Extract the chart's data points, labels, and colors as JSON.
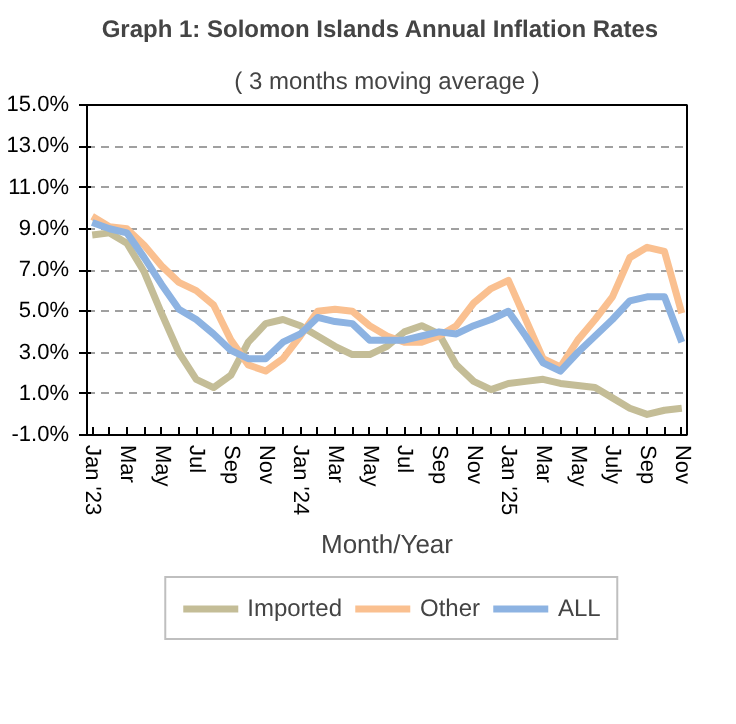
{
  "chart_data": {
    "type": "line",
    "title": "Graph 1:   Solomon Islands Annual Inflation Rates",
    "subtitle": "( 3 months moving average )",
    "xlabel": "Month/Year",
    "categories": [
      "Jan '23",
      null,
      "Mar",
      null,
      "May",
      null,
      "Jul",
      null,
      "Sep",
      null,
      "Nov",
      null,
      "Jan '24",
      null,
      "Mar",
      null,
      "May",
      null,
      "Jul",
      null,
      "Sep",
      null,
      "Nov",
      null,
      "Jan '25",
      null,
      "Mar",
      null,
      "May",
      null,
      "July",
      null,
      "Sep",
      null,
      "Nov"
    ],
    "series": [
      {
        "name": "Imported",
        "color": "#c4bd97",
        "values": [
          8.7,
          8.8,
          8.3,
          6.9,
          4.9,
          3.0,
          1.7,
          1.3,
          1.9,
          3.5,
          4.4,
          4.6,
          4.3,
          3.8,
          3.3,
          2.9,
          2.9,
          3.3,
          4.0,
          4.3,
          3.9,
          2.4,
          1.6,
          1.2,
          1.5,
          1.6,
          1.7,
          1.5,
          1.4,
          1.3,
          0.8,
          0.3,
          0.0,
          0.2,
          0.3
        ]
      },
      {
        "name": "Other",
        "color": "#fac090",
        "values": [
          9.6,
          9.1,
          9.0,
          8.2,
          7.2,
          6.4,
          6.0,
          5.3,
          3.6,
          2.4,
          2.1,
          2.7,
          3.8,
          5.0,
          5.1,
          5.0,
          4.3,
          3.8,
          3.5,
          3.5,
          3.8,
          4.3,
          5.4,
          6.1,
          6.5,
          4.6,
          2.7,
          2.3,
          3.6,
          4.6,
          5.7,
          7.6,
          8.1,
          7.9,
          4.9
        ]
      },
      {
        "name": "ALL",
        "color": "#8db3e2",
        "values": [
          9.3,
          9.0,
          8.8,
          7.6,
          6.3,
          5.1,
          4.6,
          3.9,
          3.1,
          2.7,
          2.7,
          3.5,
          3.9,
          4.7,
          4.5,
          4.4,
          3.6,
          3.6,
          3.6,
          3.8,
          4.0,
          3.9,
          4.3,
          4.6,
          5.0,
          3.8,
          2.5,
          2.1,
          3.0,
          3.8,
          4.6,
          5.5,
          5.7,
          5.7,
          3.5
        ]
      }
    ],
    "ylim": [
      -1,
      15
    ],
    "yticks": [
      {
        "value": -1,
        "label": "-1.0%"
      },
      {
        "value": 1,
        "label": "1.0%"
      },
      {
        "value": 3,
        "label": "3.0%"
      },
      {
        "value": 5,
        "label": "5.0%"
      },
      {
        "value": 7,
        "label": "7.0%"
      },
      {
        "value": 9,
        "label": "9.0%"
      },
      {
        "value": 11,
        "label": "11.0%"
      },
      {
        "value": 13,
        "label": "13.0%"
      },
      {
        "value": 15,
        "label": "15.0%"
      }
    ],
    "grid": "y",
    "legend": "bottom",
    "marker": "none",
    "line_style": "solid"
  }
}
